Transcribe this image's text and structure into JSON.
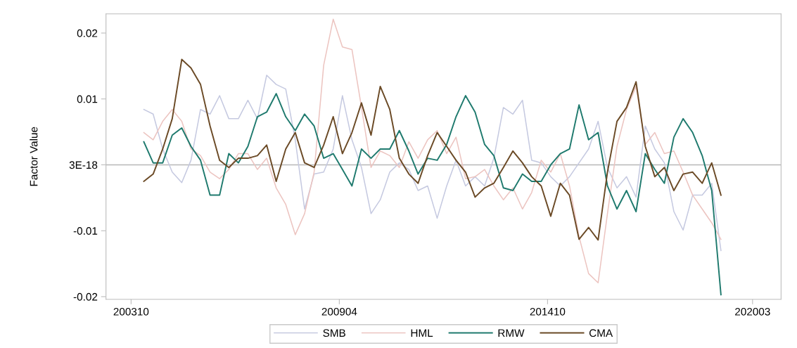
{
  "chart_data": {
    "type": "line",
    "ylabel": "Factor Value",
    "x": [
      "2004-02",
      "2004-05",
      "2004-08",
      "2004-11",
      "2005-02",
      "2005-05",
      "2005-08",
      "2005-11",
      "2006-02",
      "2006-05",
      "2006-08",
      "2006-11",
      "2007-02",
      "2007-05",
      "2007-08",
      "2007-11",
      "2008-02",
      "2008-05",
      "2008-08",
      "2008-11",
      "2009-02",
      "2009-05",
      "2009-08",
      "2009-11",
      "2010-02",
      "2010-05",
      "2010-08",
      "2010-11",
      "2011-02",
      "2011-05",
      "2011-08",
      "2011-11",
      "2012-02",
      "2012-05",
      "2012-08",
      "2012-11",
      "2013-02",
      "2013-05",
      "2013-08",
      "2013-11",
      "2014-02",
      "2014-05",
      "2014-08",
      "2014-11",
      "2015-02",
      "2015-05",
      "2015-08",
      "2015-11",
      "2016-02",
      "2016-05",
      "2016-08",
      "2016-11",
      "2017-02",
      "2017-05",
      "2017-08",
      "2017-11",
      "2018-02",
      "2018-05",
      "2018-08",
      "2018-11",
      "2019-02",
      "2019-05"
    ],
    "series": [
      {
        "name": "SMB",
        "color": "#c5c9e0",
        "values": [
          0.0084,
          0.0077,
          0.0024,
          -0.0011,
          -0.0027,
          0.0007,
          0.0084,
          0.0077,
          0.0105,
          0.007,
          0.007,
          0.0098,
          0.007,
          0.0136,
          0.0122,
          0.0115,
          0.0038,
          -0.0067,
          -0.0014,
          -0.0011,
          0.0024,
          0.0105,
          0.0038,
          -0.0004,
          -0.0074,
          -0.0053,
          -0.0011,
          0.0003,
          -0.0007,
          -0.0039,
          -0.0032,
          -0.0081,
          -0.0032,
          0.0007,
          -0.0032,
          -0.0018,
          -0.0032,
          0.001,
          0.0087,
          0.0077,
          0.0098,
          0.0007,
          0.0003,
          -0.0018,
          -0.0032,
          -0.0018,
          0.0003,
          0.0024,
          0.0066,
          -0.0004,
          -0.0035,
          -0.0018,
          -0.0049,
          0.0059,
          0.0024,
          0.0003,
          -0.0071,
          -0.0099,
          -0.0046,
          -0.0046,
          -0.0028,
          -0.013
        ]
      },
      {
        "name": "HML",
        "color": "#ecc4c0",
        "values": [
          0.0049,
          0.0038,
          0.0066,
          0.0084,
          0.0066,
          0.0024,
          0.0014,
          -0.0011,
          -0.0021,
          -0.0007,
          0.0017,
          0.0017,
          -0.0007,
          0.001,
          -0.0035,
          -0.006,
          -0.0106,
          -0.0074,
          -0.0011,
          0.0151,
          0.0221,
          0.0179,
          0.0175,
          0.0087,
          -0.0004,
          0.0021,
          0.0014,
          -0.0004,
          0.0035,
          0.001,
          0.0038,
          0.0052,
          0.0017,
          0.0042,
          -0.0021,
          -0.0018,
          -0.0007,
          -0.0032,
          -0.0053,
          -0.0035,
          -0.0067,
          -0.0042,
          0.0007,
          -0.0011,
          0.0017,
          -0.0032,
          -0.0109,
          -0.0165,
          -0.0179,
          -0.0074,
          0.0028,
          0.0084,
          0.0119,
          0.0031,
          0.0049,
          0.0017,
          0.0021,
          -0.0011,
          -0.0046,
          -0.0067,
          -0.0088,
          -0.0113
        ]
      },
      {
        "name": "RMW",
        "color": "#1f7a6e",
        "values": [
          0.0035,
          0.0003,
          0.0003,
          0.0045,
          0.0056,
          0.0028,
          0.0007,
          -0.0046,
          -0.0046,
          0.0017,
          0.0003,
          0.0028,
          0.0073,
          0.008,
          0.0108,
          0.0073,
          0.0052,
          0.0077,
          0.0059,
          0.001,
          0.0017,
          -0.0007,
          -0.0032,
          0.0024,
          0.001,
          0.0024,
          0.0024,
          0.0052,
          0.0021,
          -0.0014,
          0.001,
          0.0007,
          0.0031,
          0.0073,
          0.0105,
          0.008,
          0.0031,
          0.0014,
          -0.0035,
          -0.0039,
          -0.0014,
          -0.0025,
          -0.0025,
          0.0,
          0.0017,
          0.0024,
          0.0091,
          0.0038,
          0.0049,
          -0.0032,
          -0.0067,
          -0.0039,
          -0.0071,
          0.0017,
          -0.0007,
          -0.0028,
          0.0042,
          0.007,
          0.0049,
          0.0014,
          -0.0039,
          -0.0197
        ]
      },
      {
        "name": "CMA",
        "color": "#6b4a26",
        "values": [
          -0.0025,
          -0.0014,
          0.0024,
          0.007,
          0.016,
          0.0147,
          0.0122,
          0.0059,
          0.0007,
          -0.0004,
          0.001,
          0.001,
          0.0014,
          0.003,
          -0.0025,
          0.0024,
          0.0049,
          0.0003,
          -0.0004,
          0.003,
          0.0073,
          0.0017,
          0.0049,
          0.0094,
          0.0045,
          0.0119,
          0.0084,
          0.001,
          -0.0014,
          -0.0028,
          0.0014,
          0.0049,
          0.0028,
          0.0007,
          -0.0011,
          -0.0049,
          -0.0035,
          -0.0028,
          -0.0004,
          0.0021,
          0.0003,
          -0.0018,
          -0.0032,
          -0.0078,
          -0.0028,
          -0.0046,
          -0.0113,
          -0.0095,
          -0.0114,
          -0.0011,
          0.0066,
          0.0087,
          0.0126,
          0.0028,
          -0.0018,
          -0.0004,
          -0.0039,
          -0.0014,
          -0.0011,
          -0.0028,
          0.0003,
          -0.0046
        ]
      }
    ],
    "xlim": [
      "2003-02",
      "2020-12"
    ],
    "xticks": [
      {
        "value": "2003-10",
        "label": "200310"
      },
      {
        "value": "2009-04",
        "label": "200904"
      },
      {
        "value": "2014-10",
        "label": "201410"
      },
      {
        "value": "2020-03",
        "label": "202003"
      }
    ],
    "ylim": [
      -0.0204,
      0.0229
    ],
    "yticks": [
      {
        "value": -0.02,
        "label": "-0.02"
      },
      {
        "value": -0.01,
        "label": "-0.01"
      },
      {
        "value": 0,
        "label": "3E-18"
      },
      {
        "value": 0.01,
        "label": "0.01"
      },
      {
        "value": 0.02,
        "label": "0.02"
      }
    ],
    "ref_lines": [
      {
        "axis": "y",
        "value": 0,
        "color": "#b8b8b8"
      }
    ],
    "grid": false,
    "legend": "bottom",
    "marker": "none",
    "line_style": "solid"
  }
}
